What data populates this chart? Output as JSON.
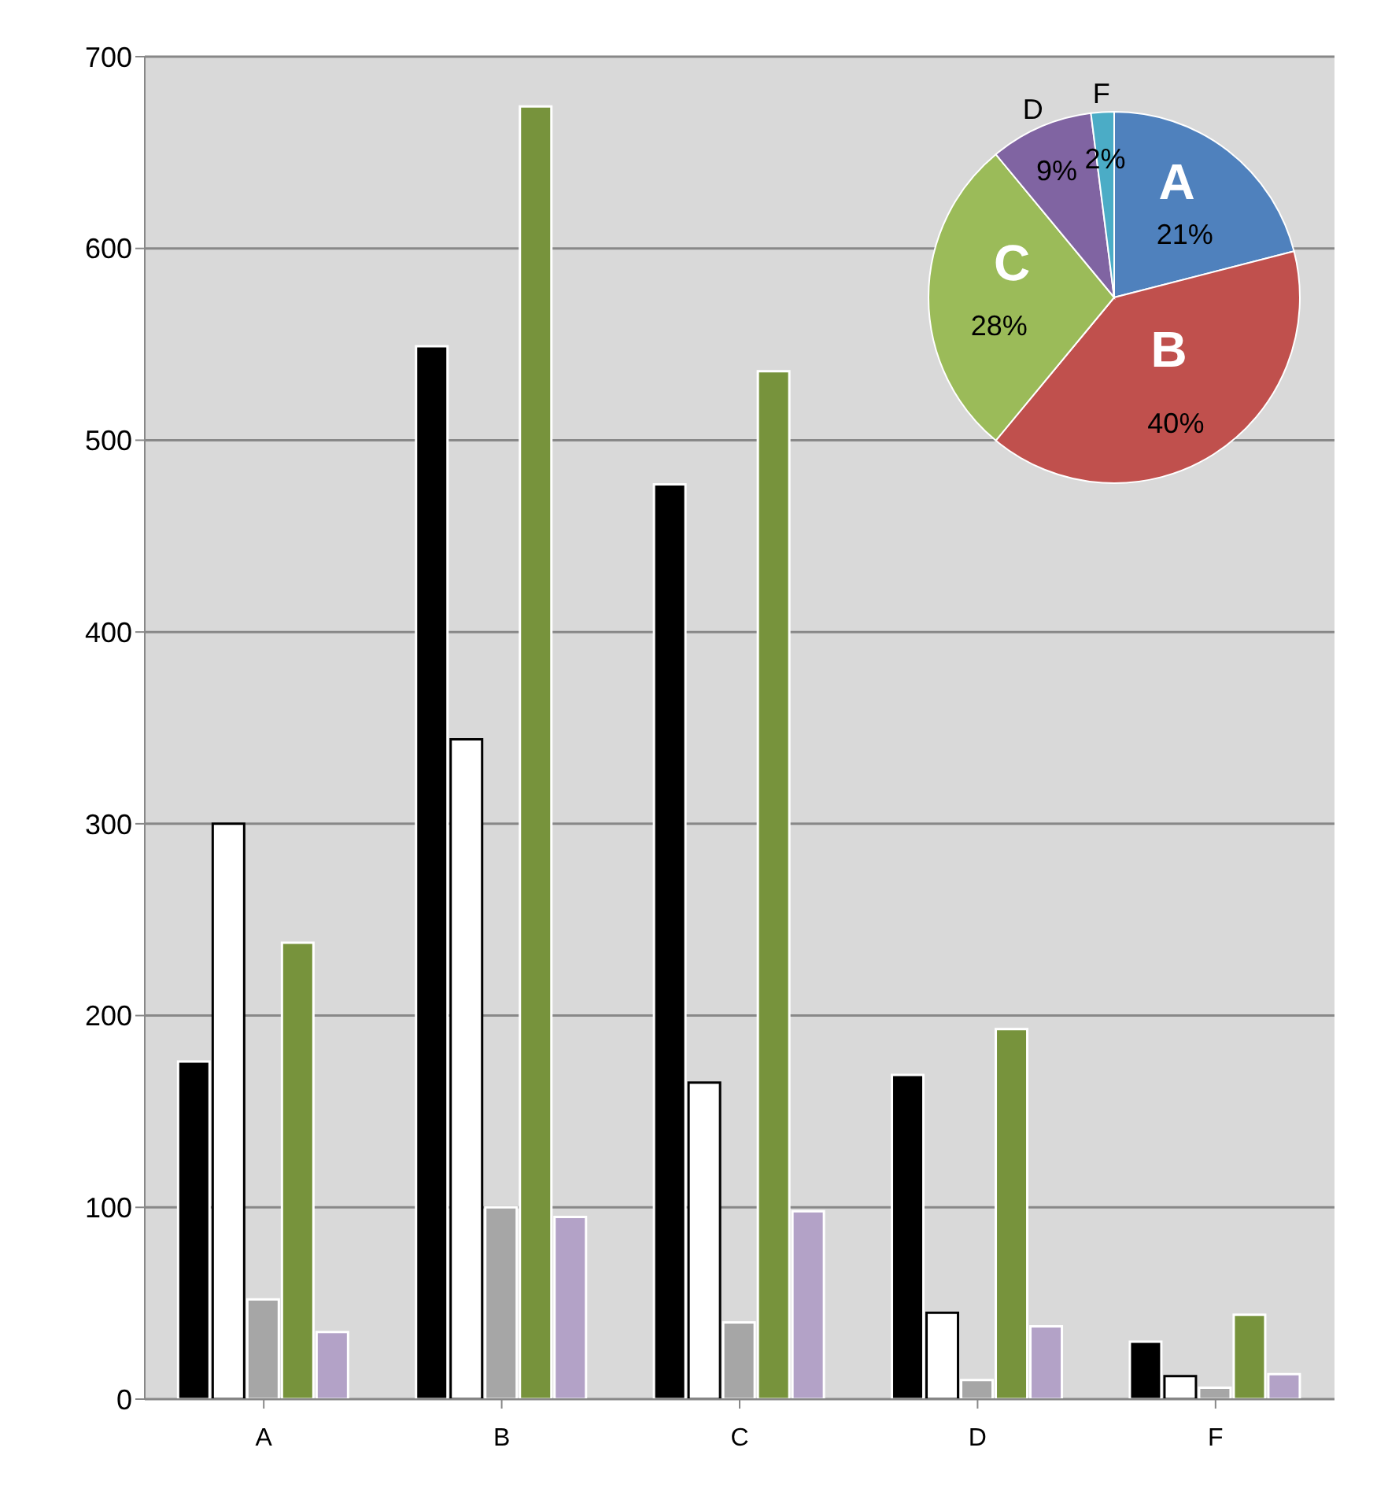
{
  "chart_data": [
    {
      "type": "bar",
      "categories": [
        "A",
        "B",
        "C",
        "D",
        "F"
      ],
      "series": [
        {
          "color": "#000000",
          "values": [
            176,
            549,
            477,
            169,
            30
          ]
        },
        {
          "color": "#ffffff",
          "values": [
            300,
            344,
            165,
            45,
            12
          ]
        },
        {
          "color": "#a6a6a6",
          "values": [
            52,
            100,
            40,
            10,
            6
          ]
        },
        {
          "color": "#77933c",
          "values": [
            238,
            674,
            536,
            193,
            44
          ]
        },
        {
          "color": "#b3a2c7",
          "values": [
            35,
            95,
            98,
            38,
            13
          ]
        }
      ],
      "ylim": [
        0,
        700
      ],
      "yticks": [
        0,
        100,
        200,
        300,
        400,
        500,
        600,
        700
      ],
      "grid": "y",
      "legend": false
    },
    {
      "type": "pie",
      "categories": [
        "A",
        "B",
        "C",
        "D",
        "F"
      ],
      "values": [
        21,
        40,
        28,
        9,
        2
      ],
      "colors": [
        "#4f81bd",
        "#c0504d",
        "#9bbb59",
        "#8064a2",
        "#4bacc6"
      ],
      "value_labels": [
        "21%",
        "40%",
        "28%",
        "9%",
        "2%"
      ],
      "legend": false
    }
  ]
}
